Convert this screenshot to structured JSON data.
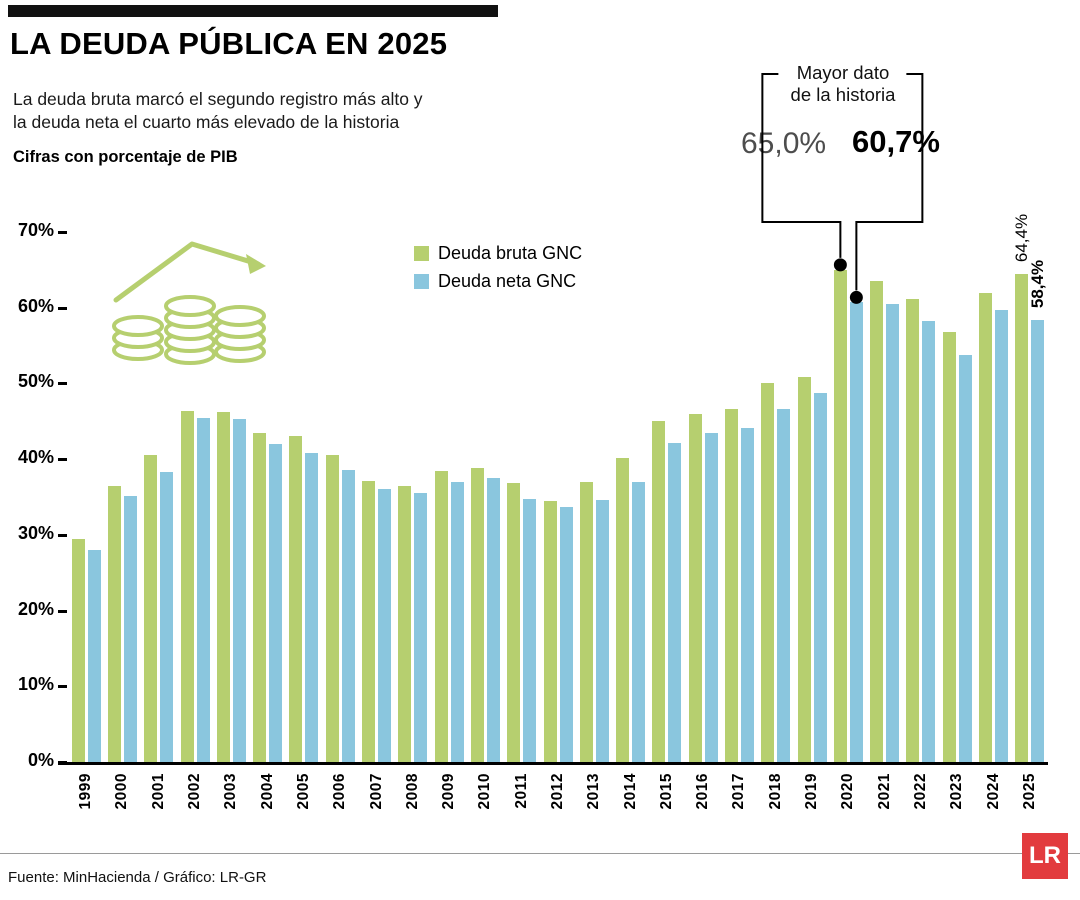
{
  "header": {
    "title": "LA DEUDA PÚBLICA EN 2025",
    "subtitle_line1": "La deuda bruta marcó el segundo registro más alto y",
    "subtitle_line2": "la deuda neta el cuarto más elevado de la historia",
    "kicker": "Cifras con porcentaje de PIB"
  },
  "annotation": {
    "label_line1": "Mayor dato",
    "label_line2": "de la historia",
    "value_bruta": "65,0%",
    "value_neta": "60,7%",
    "year": 2020
  },
  "latest_labels": {
    "bruta": "64,4%",
    "neta": "58,4%"
  },
  "legend": [
    {
      "label": "Deuda bruta GNC",
      "color": "#b6cf6f"
    },
    {
      "label": "Deuda neta GNC",
      "color": "#8ac6de"
    }
  ],
  "chart_data": {
    "type": "bar",
    "title": "LA DEUDA PÚBLICA EN 2025",
    "xlabel": "",
    "ylabel": "% del PIB",
    "ylim": [
      0,
      70
    ],
    "yticks": [
      "0%",
      "10%",
      "20%",
      "30%",
      "40%",
      "50%",
      "60%",
      "70%"
    ],
    "grid": false,
    "legend_position": "top-center-inside",
    "categories": [
      1999,
      2000,
      2001,
      2002,
      2003,
      2004,
      2005,
      2006,
      2007,
      2008,
      2009,
      2010,
      2011,
      2012,
      2013,
      2014,
      2015,
      2016,
      2017,
      2018,
      2019,
      2020,
      2021,
      2022,
      2023,
      2024,
      2025
    ],
    "series": [
      {
        "name": "Deuda bruta GNC",
        "color": "#b6cf6f",
        "values": [
          29.5,
          36.5,
          40.6,
          46.4,
          46.2,
          43.5,
          43.1,
          40.5,
          37.1,
          36.5,
          38.4,
          38.8,
          36.8,
          34.5,
          37.0,
          40.2,
          45.0,
          46.0,
          46.6,
          50.0,
          50.8,
          65.0,
          63.5,
          61.1,
          56.8,
          62.0,
          64.4
        ]
      },
      {
        "name": "Deuda neta GNC",
        "color": "#8ac6de",
        "values": [
          28.0,
          35.1,
          38.3,
          45.5,
          45.3,
          42.0,
          40.8,
          38.6,
          36.0,
          35.5,
          37.0,
          37.5,
          34.7,
          33.7,
          34.6,
          37.0,
          42.1,
          43.5,
          44.1,
          46.6,
          48.8,
          60.7,
          60.5,
          58.2,
          53.8,
          59.7,
          58.4
        ]
      }
    ]
  },
  "footer": {
    "source": "Fuente: MinHacienda / Gráfico: LR-GR",
    "logo": "LR"
  },
  "colors": {
    "bruta": "#b6cf6f",
    "neta": "#8ac6de",
    "annotation_dot": "#000000",
    "logo_bg": "#e23b3e"
  }
}
